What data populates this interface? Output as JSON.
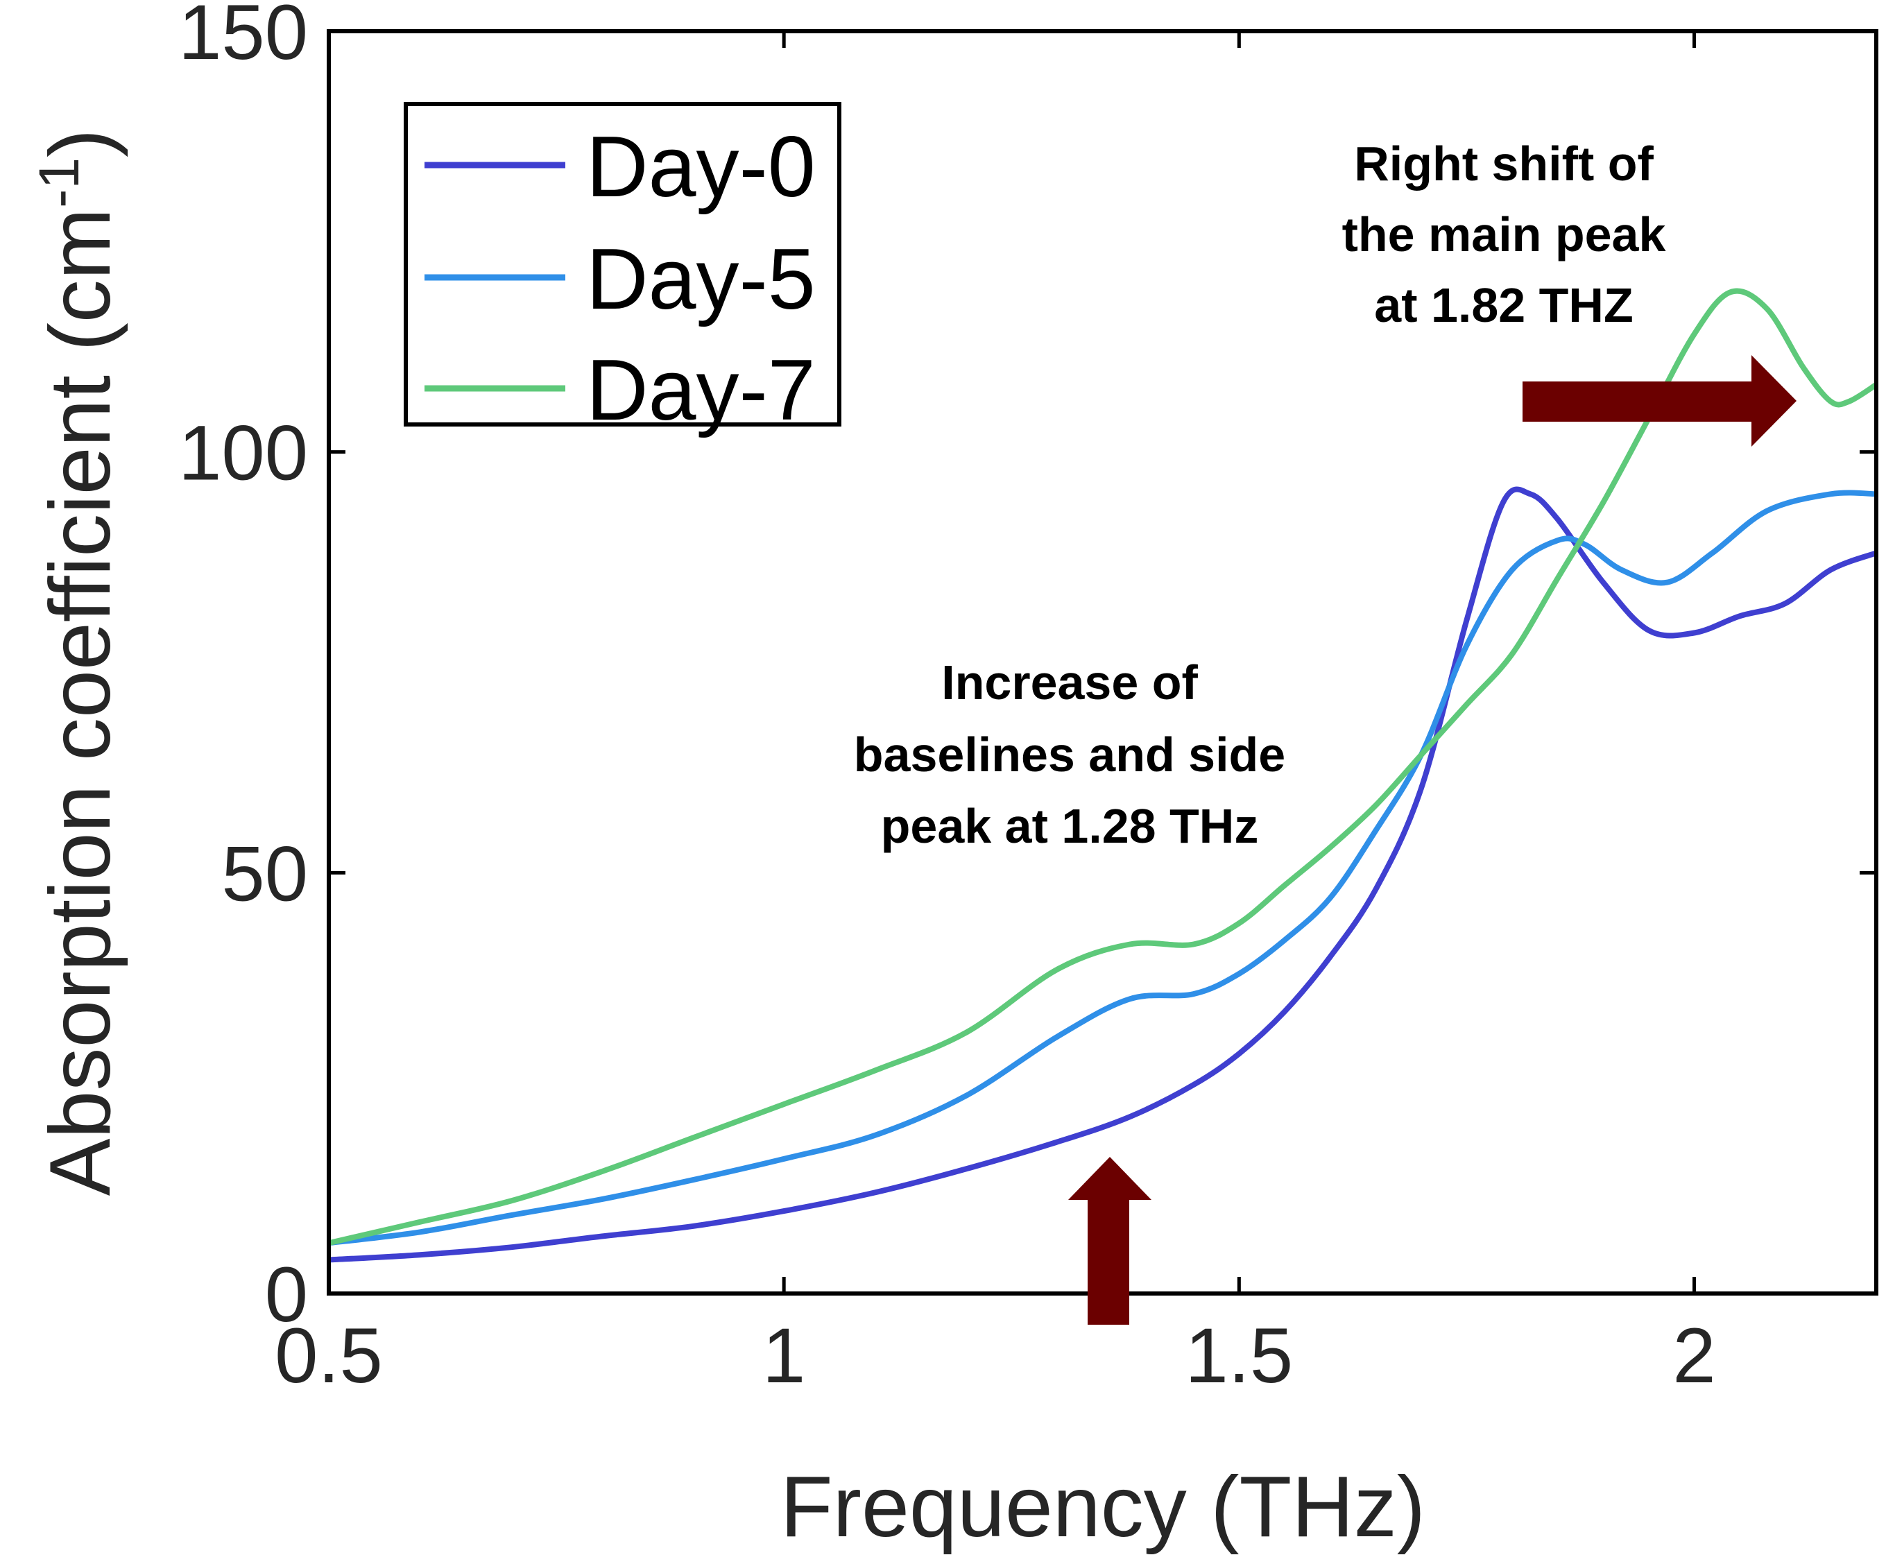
{
  "chart_data": {
    "type": "line",
    "xlabel": "Frequency (THz)",
    "ylabel": {
      "main": "Absorption coefficient (cm",
      "sup": "-1",
      "close": ")"
    },
    "xlim": [
      0.5,
      2.2
    ],
    "ylim": [
      0,
      150
    ],
    "xticks": [
      0.5,
      1,
      1.5,
      2
    ],
    "xtick_labels": [
      "0.5",
      "1",
      "1.5",
      "2"
    ],
    "yticks": [
      0,
      50,
      100,
      150
    ],
    "ytick_labels": [
      "0",
      "50",
      "100",
      "150"
    ],
    "grid": false,
    "legend_position": "top-left",
    "series": [
      {
        "name": "Day-0",
        "color": "#3f3fd0",
        "x": [
          0.5,
          0.6,
          0.7,
          0.8,
          0.9,
          1.0,
          1.1,
          1.2,
          1.3,
          1.38,
          1.45,
          1.5,
          1.55,
          1.6,
          1.65,
          1.7,
          1.75,
          1.79,
          1.82,
          1.85,
          1.9,
          1.95,
          2.0,
          2.05,
          2.1,
          2.15,
          2.2
        ],
        "y": [
          4,
          4.6,
          5.5,
          6.8,
          8,
          9.8,
          12,
          14.8,
          18,
          21,
          24.8,
          28.5,
          33.5,
          40,
          48,
          60,
          80,
          94,
          95,
          92,
          84.5,
          78.8,
          78.5,
          80.5,
          82,
          86,
          88
        ]
      },
      {
        "name": "Day-5",
        "color": "#2f8fe8",
        "x": [
          0.5,
          0.6,
          0.7,
          0.8,
          0.9,
          1.0,
          1.1,
          1.2,
          1.3,
          1.38,
          1.45,
          1.5,
          1.55,
          1.6,
          1.65,
          1.7,
          1.75,
          1.8,
          1.85,
          1.88,
          1.92,
          1.97,
          2.02,
          2.08,
          2.15,
          2.2
        ],
        "y": [
          6,
          7.3,
          9.3,
          11.2,
          13.5,
          16,
          18.8,
          23.5,
          30.5,
          35,
          35.6,
          38,
          42,
          47,
          55,
          64,
          77,
          86,
          89.5,
          89,
          86,
          84.5,
          88,
          93,
          95,
          95
        ]
      },
      {
        "name": "Day-7",
        "color": "#5ec97a",
        "x": [
          0.5,
          0.6,
          0.7,
          0.8,
          0.9,
          1.0,
          1.1,
          1.2,
          1.3,
          1.38,
          1.45,
          1.5,
          1.55,
          1.6,
          1.65,
          1.7,
          1.75,
          1.8,
          1.85,
          1.9,
          1.95,
          2.0,
          2.04,
          2.08,
          2.12,
          2.15,
          2.17,
          2.2
        ],
        "y": [
          6,
          8.5,
          11,
          14.5,
          18.5,
          22.5,
          26.5,
          31,
          38.5,
          41.5,
          41.5,
          44,
          48.5,
          53,
          58,
          64,
          70,
          76,
          85,
          94,
          104,
          114,
          119,
          117,
          110,
          106,
          106,
          108
        ]
      }
    ],
    "annotations": [
      {
        "id": "baseline-note",
        "lines": [
          "Increase of",
          "baselines and side",
          "peak at 1.28 THz"
        ]
      },
      {
        "id": "peak-shift-note",
        "lines": [
          "Right shift of",
          "the main peak",
          "at 1.82 THZ"
        ]
      }
    ],
    "arrow_color": "#6b0000"
  }
}
